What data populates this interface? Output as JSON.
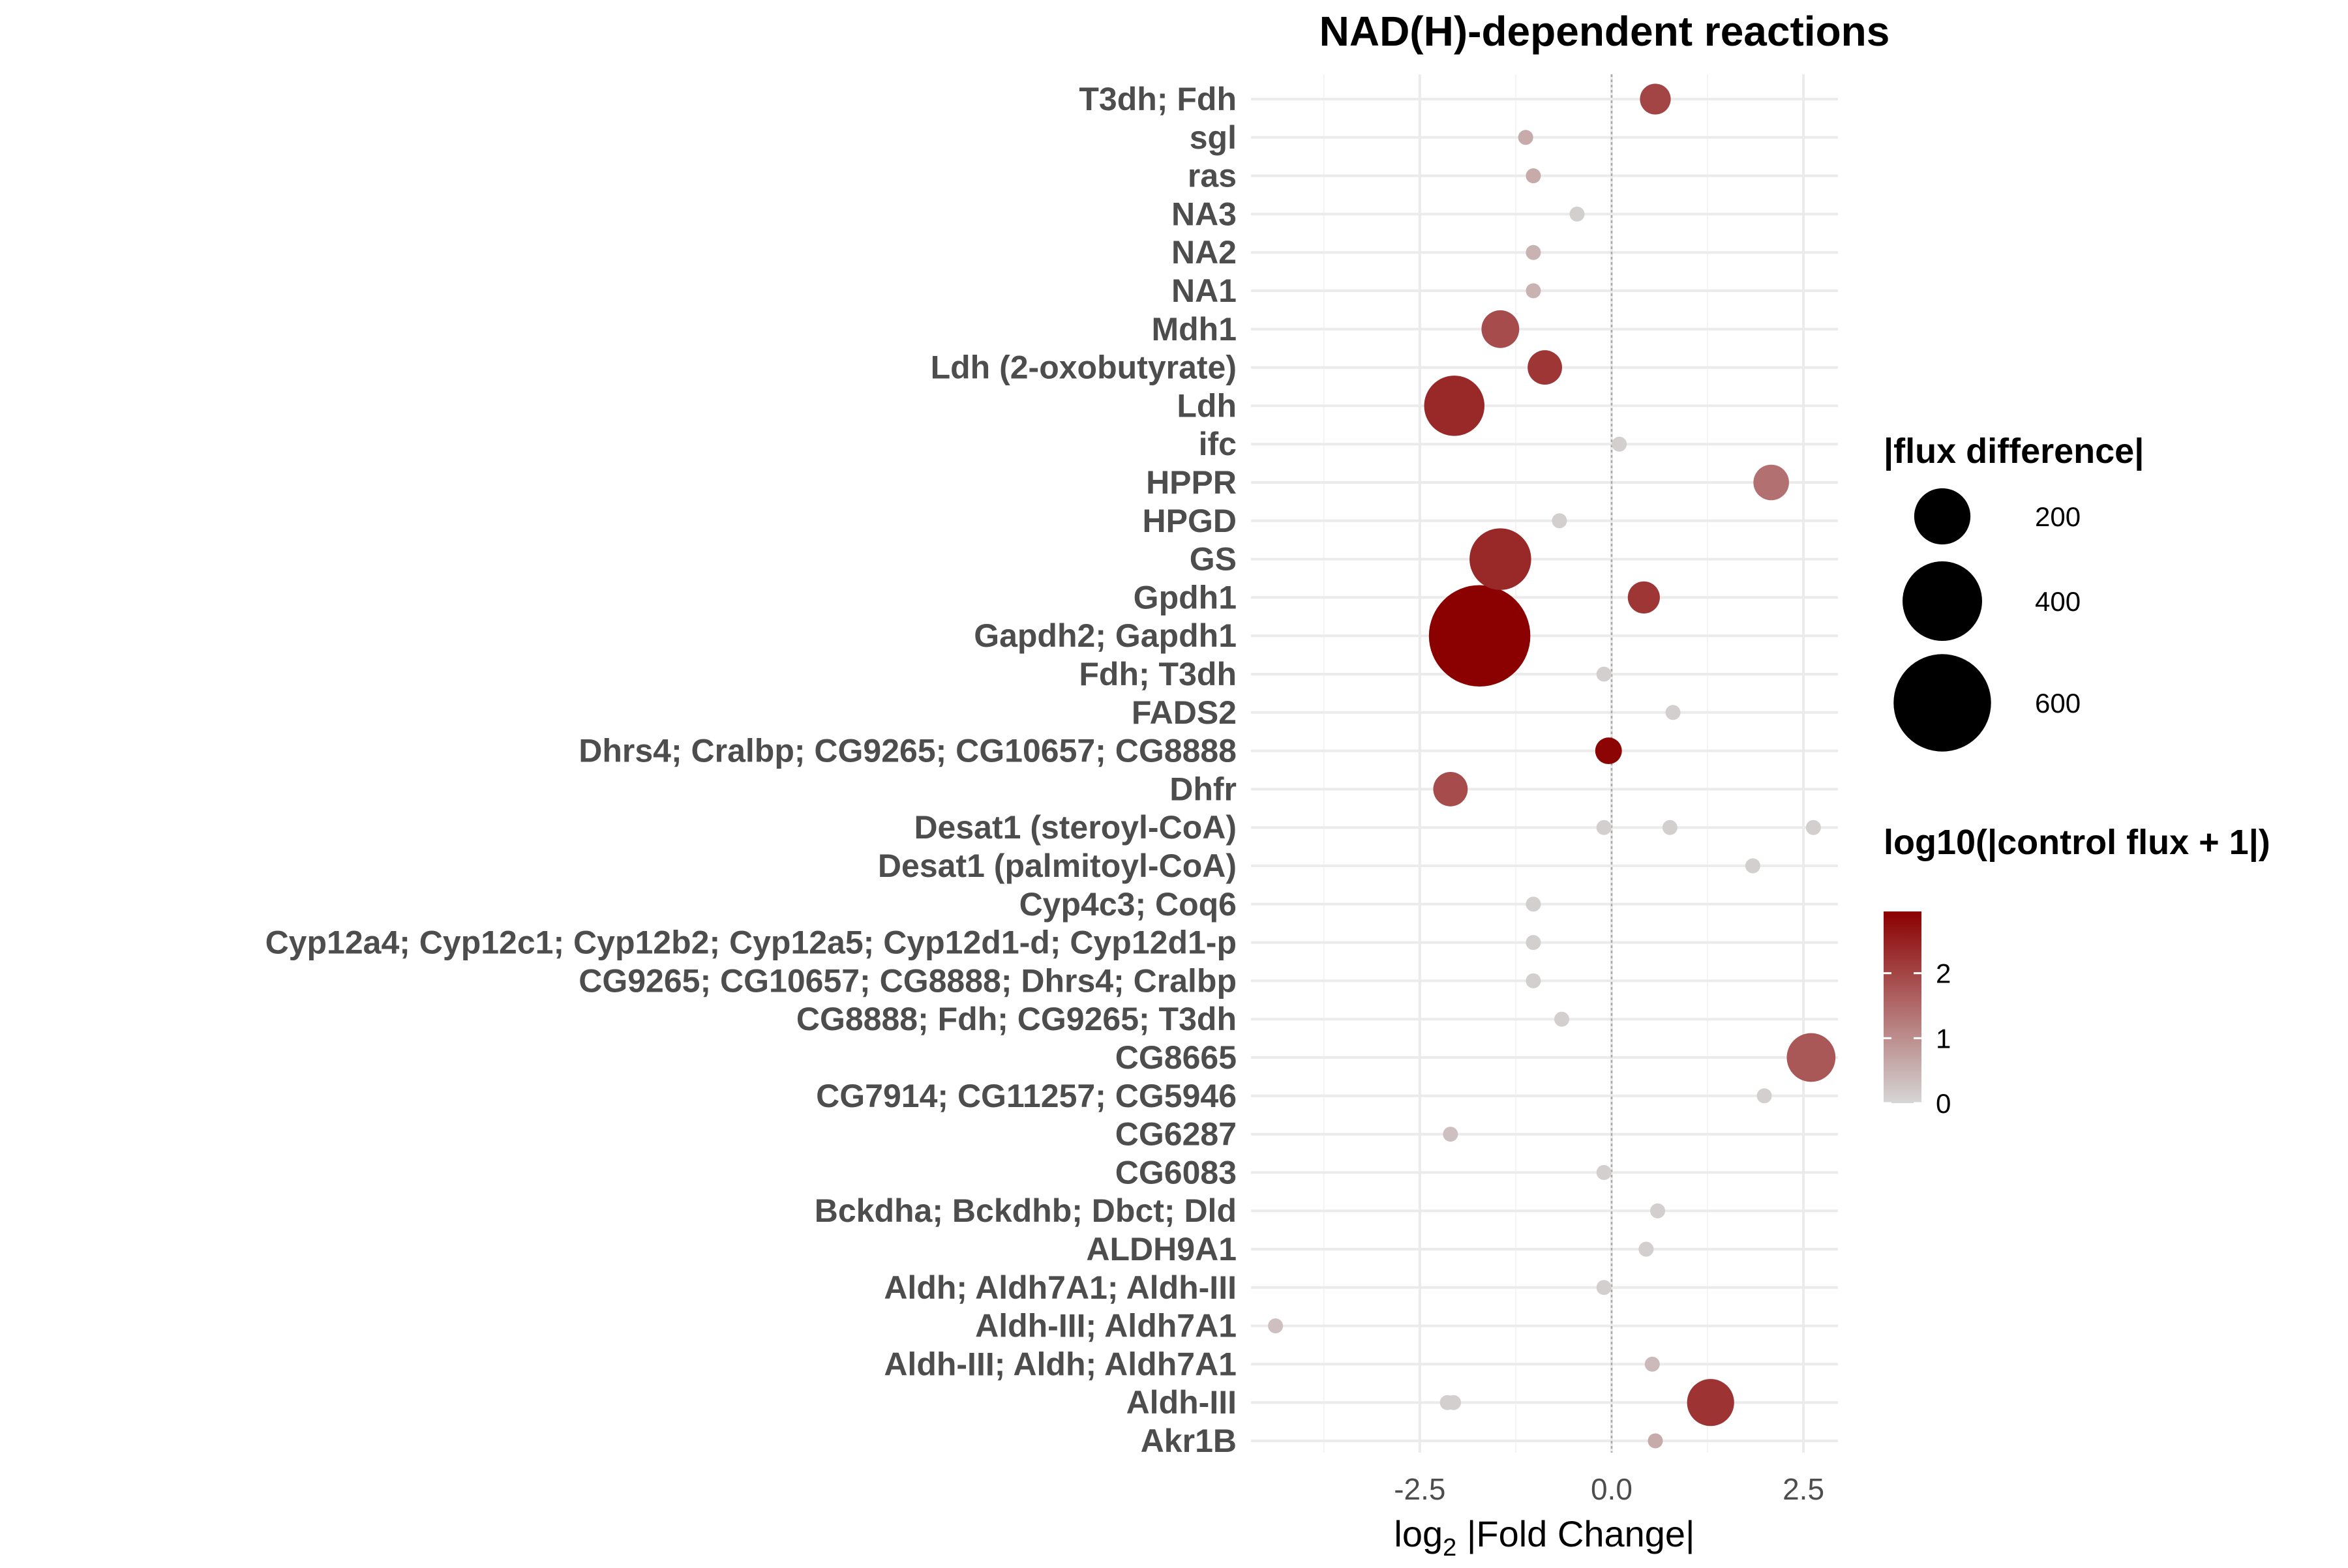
{
  "chart_data": {
    "type": "scatter",
    "title": "NAD(H)-dependent reactions",
    "xlabel_main": "log",
    "xlabel_sub": "2",
    "xlabel_rest": " |Fold Change|",
    "xlim": [
      -4.7,
      2.95
    ],
    "x_ticks": [
      -2.5,
      0.0,
      2.5
    ],
    "x_tick_labels": [
      "-2.5",
      "0.0",
      "2.5"
    ],
    "grid": true,
    "zero_line": true,
    "legend_position": "right",
    "categories": [
      "T3dh; Fdh",
      "sgl",
      "ras",
      "NA3",
      "NA2",
      "NA1",
      "Mdh1",
      "Ldh (2-oxobutyrate)",
      "Ldh",
      "ifc",
      "HPPR",
      "HPGD",
      "GS",
      "Gpdh1",
      "Gapdh2; Gapdh1",
      "Fdh; T3dh",
      "FADS2",
      "Dhrs4; Cralbp; CG9265; CG10657; CG8888",
      "Dhfr",
      "Desat1 (steroyl-CoA)",
      "Desat1 (palmitoyl-CoA)",
      "Cyp4c3; Coq6",
      "Cyp12a4; Cyp12c1; Cyp12b2; Cyp12a5; Cyp12d1-d; Cyp12d1-p",
      "CG9265; CG10657; CG8888; Dhrs4; Cralbp",
      "CG8888; Fdh; CG9265; T3dh",
      "CG8665",
      "CG7914; CG11257; CG5946",
      "CG6287",
      "CG6083",
      "Bckdha; Bckdhb; Dbct; Dld",
      "ALDH9A1",
      "Aldh; Aldh7A1; Aldh-III",
      "Aldh-III; Aldh7A1",
      "Aldh-III; Aldh; Aldh7A1",
      "Aldh-III",
      "Akr1B"
    ],
    "points": [
      {
        "category": "T3dh; Fdh",
        "x": 0.57,
        "flux_diff": 60,
        "log_control": 2.0
      },
      {
        "category": "sgl",
        "x": -1.12,
        "flux_diff": 5,
        "log_control": 0.6
      },
      {
        "category": "ras",
        "x": -1.02,
        "flux_diff": 5,
        "log_control": 0.6
      },
      {
        "category": "NA3",
        "x": -0.45,
        "flux_diff": 3,
        "log_control": 0.1
      },
      {
        "category": "NA2",
        "x": -1.02,
        "flux_diff": 5,
        "log_control": 0.5
      },
      {
        "category": "NA1",
        "x": -1.02,
        "flux_diff": 5,
        "log_control": 0.5
      },
      {
        "category": "Mdh1",
        "x": -1.45,
        "flux_diff": 90,
        "log_control": 1.9
      },
      {
        "category": "Ldh (2-oxobutyrate)",
        "x": -0.87,
        "flux_diff": 75,
        "log_control": 2.2
      },
      {
        "category": "Ldh",
        "x": -2.05,
        "flux_diff": 230,
        "log_control": 2.4
      },
      {
        "category": "ifc",
        "x": 0.1,
        "flux_diff": 3,
        "log_control": 0.1
      },
      {
        "category": "HPPR",
        "x": 2.08,
        "flux_diff": 80,
        "log_control": 1.4
      },
      {
        "category": "HPGD",
        "x": -0.68,
        "flux_diff": 4,
        "log_control": 0.1
      },
      {
        "category": "GS",
        "x": -1.45,
        "flux_diff": 240,
        "log_control": 2.4
      },
      {
        "category": "Gpdh1",
        "x": 0.42,
        "flux_diff": 65,
        "log_control": 2.2
      },
      {
        "category": "Gapdh2; Gapdh1",
        "x": -1.72,
        "flux_diff": 650,
        "log_control": 2.95
      },
      {
        "category": "Fdh; T3dh",
        "x": -0.1,
        "flux_diff": 4,
        "log_control": 0.1
      },
      {
        "category": "FADS2",
        "x": 0.8,
        "flux_diff": 4,
        "log_control": 0.1
      },
      {
        "category": "Dhrs4; Cralbp; CG9265; CG10657; CG8888",
        "x": -0.04,
        "flux_diff": 45,
        "log_control": 2.9
      },
      {
        "category": "Dhfr",
        "x": -2.1,
        "flux_diff": 75,
        "log_control": 1.9
      },
      {
        "category": "Desat1 (steroyl-CoA)",
        "x": -0.1,
        "flux_diff": 4,
        "log_control": 0.1
      },
      {
        "category": "Desat1 (steroyl-CoA)",
        "x": 0.76,
        "flux_diff": 4,
        "log_control": 0.1
      },
      {
        "category": "Desat1 (steroyl-CoA)",
        "x": 2.63,
        "flux_diff": 4,
        "log_control": 0.1
      },
      {
        "category": "Desat1 (palmitoyl-CoA)",
        "x": 1.84,
        "flux_diff": 4,
        "log_control": 0.1
      },
      {
        "category": "Cyp4c3; Coq6",
        "x": -1.02,
        "flux_diff": 4,
        "log_control": 0.1
      },
      {
        "category": "Cyp12a4; Cyp12c1; Cyp12b2; Cyp12a5; Cyp12d1-d; Cyp12d1-p",
        "x": -1.02,
        "flux_diff": 4,
        "log_control": 0.1
      },
      {
        "category": "CG9265; CG10657; CG8888; Dhrs4; Cralbp",
        "x": -1.02,
        "flux_diff": 4,
        "log_control": 0.1
      },
      {
        "category": "CG8888; Fdh; CG9265; T3dh",
        "x": -0.65,
        "flux_diff": 4,
        "log_control": 0.1
      },
      {
        "category": "CG8665",
        "x": 2.6,
        "flux_diff": 150,
        "log_control": 1.75
      },
      {
        "category": "CG7914; CG11257; CG5946",
        "x": 1.99,
        "flux_diff": 4,
        "log_control": 0.1
      },
      {
        "category": "CG6287",
        "x": -2.1,
        "flux_diff": 4,
        "log_control": 0.3
      },
      {
        "category": "CG6083",
        "x": -0.1,
        "flux_diff": 4,
        "log_control": 0.1
      },
      {
        "category": "Bckdha; Bckdhb; Dbct; Dld",
        "x": 0.6,
        "flux_diff": 4,
        "log_control": 0.1
      },
      {
        "category": "ALDH9A1",
        "x": 0.45,
        "flux_diff": 4,
        "log_control": 0.1
      },
      {
        "category": "Aldh; Aldh7A1; Aldh-III",
        "x": -0.1,
        "flux_diff": 4,
        "log_control": 0.1
      },
      {
        "category": "Aldh-III; Aldh7A1",
        "x": -4.38,
        "flux_diff": 4,
        "log_control": 0.3
      },
      {
        "category": "Aldh-III; Aldh; Aldh7A1",
        "x": 0.53,
        "flux_diff": 4,
        "log_control": 0.4
      },
      {
        "category": "Aldh-III",
        "x": -2.14,
        "flux_diff": 4,
        "log_control": 0.1
      },
      {
        "category": "Aldh-III",
        "x": -2.06,
        "flux_diff": 4,
        "log_control": 0.1
      },
      {
        "category": "Aldh-III",
        "x": 1.29,
        "flux_diff": 140,
        "log_control": 2.25
      },
      {
        "category": "Akr1B",
        "x": 0.57,
        "flux_diff": 6,
        "log_control": 0.6
      }
    ],
    "size_legend": {
      "title": "|flux difference|",
      "entries": [
        {
          "value": 200,
          "label": "200"
        },
        {
          "value": 400,
          "label": "400"
        },
        {
          "value": 600,
          "label": "600"
        }
      ]
    },
    "color_legend": {
      "title": "log10(|control flux + 1|)",
      "range": [
        0,
        2.95
      ],
      "ticks": [
        0,
        1,
        2
      ],
      "tick_labels": [
        "0",
        "1",
        "2"
      ],
      "low_color": "#d6d6d6",
      "high_color": "#8b0000"
    },
    "colors": {
      "background": "#ffffff",
      "grid_major": "#ebebeb",
      "grid_minor": "#f4f4f4",
      "zero_line": "#aaaaaa",
      "axis_text": "#4d4d4d",
      "title": "#000000"
    }
  }
}
